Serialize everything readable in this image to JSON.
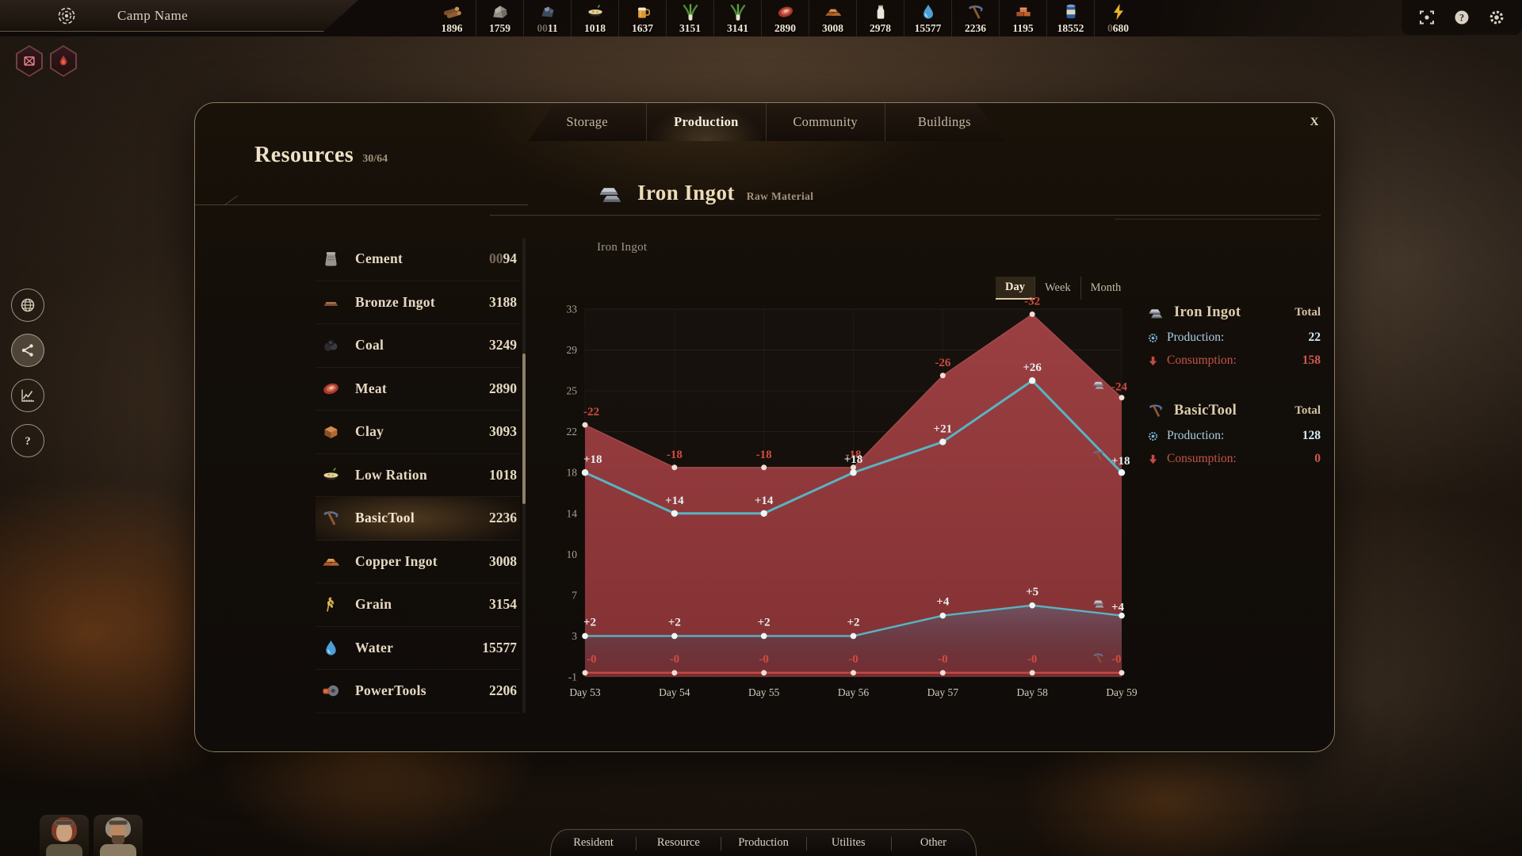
{
  "topbar": {
    "camp_name": "Camp Name",
    "resources": [
      {
        "icon": "wood",
        "dim": "",
        "value": "1896"
      },
      {
        "icon": "stone",
        "dim": "",
        "value": "1759"
      },
      {
        "icon": "iron-ore",
        "dim": "00",
        "value": "11"
      },
      {
        "icon": "low-ration",
        "dim": "",
        "value": "1018"
      },
      {
        "icon": "beer",
        "dim": "",
        "value": "1637"
      },
      {
        "icon": "leek",
        "dim": "",
        "value": "3151"
      },
      {
        "icon": "leek",
        "dim": "",
        "value": "3141"
      },
      {
        "icon": "meat",
        "dim": "",
        "value": "2890"
      },
      {
        "icon": "copper-ingot",
        "dim": "",
        "value": "3008"
      },
      {
        "icon": "milk",
        "dim": "",
        "value": "2978"
      },
      {
        "icon": "water",
        "dim": "",
        "value": "15577"
      },
      {
        "icon": "basic-tool",
        "dim": "",
        "value": "2236"
      },
      {
        "icon": "bricks",
        "dim": "",
        "value": "1195"
      },
      {
        "icon": "canned-food",
        "dim": "",
        "value": "18552"
      },
      {
        "icon": "energy",
        "dim": "0",
        "value": "680"
      }
    ],
    "system_icons": [
      "fullscreen",
      "help",
      "settings"
    ]
  },
  "alerts": [
    {
      "icon": "crate"
    },
    {
      "icon": "flame"
    }
  ],
  "side_buttons": [
    {
      "icon": "globe"
    },
    {
      "icon": "share"
    },
    {
      "icon": "chart-line"
    },
    {
      "icon": "question"
    }
  ],
  "modal": {
    "close_label": "X",
    "tabs": [
      {
        "label": "Storage",
        "active": false
      },
      {
        "label": "Production",
        "active": true
      },
      {
        "label": "Community",
        "active": false
      },
      {
        "label": "Buildings",
        "active": false
      }
    ],
    "resources_panel": {
      "title": "Resources",
      "count": "30/64",
      "items": [
        {
          "icon": "cement",
          "name": "Cement",
          "dim": "00",
          "value": "94",
          "selected": false
        },
        {
          "icon": "bronze-ingot",
          "name": "Bronze Ingot",
          "dim": "",
          "value": "3188",
          "selected": false
        },
        {
          "icon": "coal",
          "name": "Coal",
          "dim": "",
          "value": "3249",
          "selected": false
        },
        {
          "icon": "meat",
          "name": "Meat",
          "dim": "",
          "value": "2890",
          "selected": false
        },
        {
          "icon": "clay",
          "name": "Clay",
          "dim": "",
          "value": "3093",
          "selected": false
        },
        {
          "icon": "low-ration",
          "name": "Low Ration",
          "dim": "",
          "value": "1018",
          "selected": false
        },
        {
          "icon": "basic-tool",
          "name": "BasicTool",
          "dim": "",
          "value": "2236",
          "selected": true
        },
        {
          "icon": "copper-ingot",
          "name": "Copper Ingot",
          "dim": "",
          "value": "3008",
          "selected": false
        },
        {
          "icon": "grain",
          "name": "Grain",
          "dim": "",
          "value": "3154",
          "selected": false
        },
        {
          "icon": "water",
          "name": "Water",
          "dim": "",
          "value": "15577",
          "selected": false
        },
        {
          "icon": "power-tools",
          "name": "PowerTools",
          "dim": "",
          "value": "2206",
          "selected": false
        }
      ]
    },
    "detail": {
      "icon": "iron-ingot",
      "title": "Iron Ingot",
      "subtitle": "Raw Material"
    },
    "stats": [
      {
        "icon": "iron-ingot",
        "name": "Iron Ingot",
        "total_label": "Total",
        "production_label": "Production:",
        "production_value": "22",
        "consumption_label": "Consumption:",
        "consumption_value": "158"
      },
      {
        "icon": "basic-tool",
        "name": "BasicTool",
        "total_label": "Total",
        "production_label": "Production:",
        "production_value": "128",
        "consumption_label": "Consumption:",
        "consumption_value": "0"
      }
    ]
  },
  "chart_data": {
    "type": "area",
    "title": "Iron Ingot",
    "range_tabs": [
      {
        "label": "Day",
        "active": true
      },
      {
        "label": "Week",
        "active": false
      },
      {
        "label": "Month",
        "active": false
      }
    ],
    "categories": [
      "Day 53",
      "Day 54",
      "Day 55",
      "Day 56",
      "Day 57",
      "Day 58",
      "Day 59"
    ],
    "y_ticks": [
      33,
      29,
      25,
      22,
      18,
      14,
      10,
      7,
      3,
      -1
    ],
    "series": [
      {
        "name": "Iron Ingot Consumption",
        "kind": "area",
        "color": "#9c3e41",
        "line_color": "#b05052",
        "dot_color": "#f2dcd4",
        "label_color": "#d24b3f",
        "values": [
          -22,
          -18,
          -18,
          -18,
          -26,
          -32,
          -24
        ],
        "labels": [
          "-22",
          "-18",
          "-18",
          "-18",
          "-26",
          "-32",
          "-24"
        ],
        "end_icon": "iron-ingot"
      },
      {
        "name": "BasicTool Production",
        "kind": "line",
        "color": "#58b4c2",
        "dot_color": "#eef7f5",
        "label_color": "#e9f1f3",
        "values": [
          18,
          14,
          14,
          18,
          21,
          26,
          18
        ],
        "labels": [
          "+18",
          "+14",
          "+14",
          "+18",
          "+21",
          "+26",
          "+18"
        ],
        "end_icon": "basic-tool"
      },
      {
        "name": "Iron Ingot Production",
        "kind": "line-band",
        "color": "#58b4c2",
        "band_color": "#6a5e72",
        "dot_color": "#eef7f5",
        "label_color": "#e9f1f3",
        "values": [
          2,
          2,
          2,
          2,
          4,
          5,
          4
        ],
        "labels": [
          "+2",
          "+2",
          "+2",
          "+2",
          "+4",
          "+5",
          "+4"
        ],
        "end_icon": "iron-ingot"
      },
      {
        "name": "BasicTool Consumption",
        "kind": "line",
        "color": "#c84743",
        "dot_color": "#f2dcd4",
        "label_color": "#d24b3f",
        "values": [
          0,
          0,
          0,
          0,
          0,
          0,
          0
        ],
        "labels": [
          "-0",
          "-0",
          "-0",
          "-0",
          "-0",
          "-0",
          "-0"
        ],
        "end_icon": "basic-tool"
      }
    ]
  },
  "bottom_bar": {
    "tabs": [
      {
        "label": "Resident"
      },
      {
        "label": "Resource"
      },
      {
        "label": "Production"
      },
      {
        "label": "Utilites"
      },
      {
        "label": "Other"
      }
    ]
  },
  "avatars": [
    {
      "id": "avatar-1"
    },
    {
      "id": "avatar-2"
    }
  ]
}
